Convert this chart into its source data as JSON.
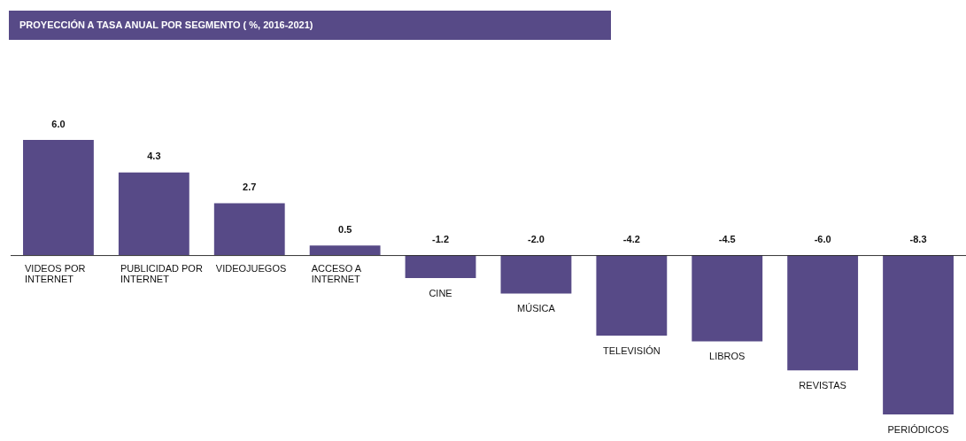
{
  "chart_data": {
    "type": "bar",
    "title": "PROYECCIÓN A TASA ANUAL POR SEGMENTO ( %, 2016-2021)",
    "categories": [
      "VIDEOS POR INTERNET",
      "PUBLICIDAD POR INTERNET",
      "VIDEOJUEGOS",
      "ACCESO A INTERNET",
      "CINE",
      "MÚSICA",
      "TELEVISIÓN",
      "LIBROS",
      "REVISTAS",
      "PERIÓDICOS"
    ],
    "values": [
      6.0,
      4.3,
      2.7,
      0.5,
      -1.2,
      -2.0,
      -4.2,
      -4.5,
      -6.0,
      -8.3
    ],
    "color": "#574a87",
    "value_labels": [
      "6.0",
      "4.3",
      "2.7",
      "0.5",
      "-1.2",
      "-2.0",
      "-4.2",
      "-4.5",
      "-6.0",
      "-8.3"
    ]
  }
}
